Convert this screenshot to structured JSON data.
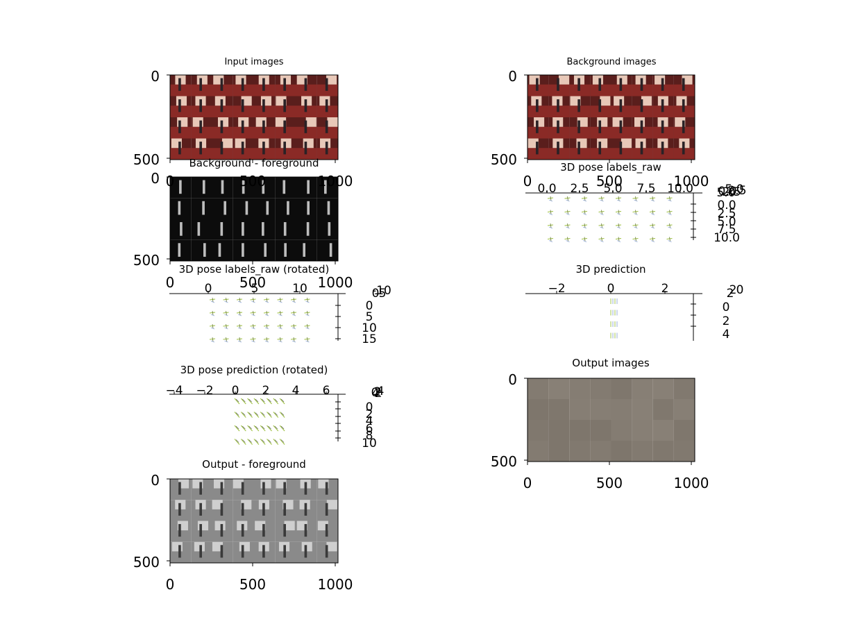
{
  "figure": {
    "colors": {
      "background": "#ffffff",
      "axis": "#000000",
      "input_tint": "#8a2a26",
      "background_tint": "#9a3a30",
      "foreground_dark": "#0c0c0c",
      "output_tint": "#7e7268",
      "pose_green": "#9bbf3c",
      "pose_blue": "#8fa6d6"
    }
  },
  "chart_data": [
    {
      "id": "input_images",
      "type": "image",
      "title": "Input images",
      "xticks": [],
      "xticks_top": [
        "0",
        "500",
        "1000"
      ],
      "yticks": [
        "0",
        "500"
      ],
      "tint": "color",
      "grid": [
        8,
        4
      ]
    },
    {
      "id": "background_images",
      "type": "image",
      "title": "Background images",
      "xticks_top": [
        "0",
        "500",
        "1000"
      ],
      "yticks": [
        "0",
        "500"
      ],
      "tint": "color",
      "grid": [
        8,
        4
      ]
    },
    {
      "id": "background_foreground",
      "type": "image",
      "title": "Background - foreground",
      "xticks_top": [
        "0",
        "500",
        "1000"
      ],
      "yticks": [
        "0",
        "500"
      ],
      "tint": "dark",
      "grid": [
        8,
        4
      ]
    },
    {
      "id": "pose_labels_raw",
      "type": "scatter",
      "title": "3D pose labels_raw",
      "xticks_top": [
        "0.0",
        "2.5",
        "5.0",
        "7.5",
        "10.0"
      ],
      "yticks_right": [
        "0.0",
        "2.5",
        "5.0",
        "7.5",
        "10.0"
      ],
      "ztick_labels": [
        "5.0",
        "2.5",
        "0.0",
        "2.5",
        "5.0"
      ],
      "grid": [
        8,
        4
      ]
    },
    {
      "id": "pose_labels_raw_rotated",
      "type": "scatter",
      "title": "3D pose labels_raw (rotated)",
      "xticks_top": [
        "0",
        "5",
        "10"
      ],
      "yticks_right": [
        "0",
        "5",
        "10",
        "15"
      ],
      "ztick_labels": [
        "-10",
        "-5",
        "0"
      ],
      "grid": [
        8,
        4
      ]
    },
    {
      "id": "prediction_3d",
      "type": "scatter",
      "title": "3D prediction",
      "xticks_top": [
        "−2",
        "0",
        "2"
      ],
      "yticks_right": [
        "0",
        "2",
        "4"
      ],
      "ztick_labels": [
        "0",
        "2",
        "2"
      ],
      "grid": [
        1,
        4
      ]
    },
    {
      "id": "pose_prediction_rotated",
      "type": "scatter",
      "title": "3D pose prediction (rotated)",
      "xticks_top": [
        "−4",
        "−2",
        "0",
        "2",
        "4",
        "6"
      ],
      "yticks_right": [
        "0",
        "2",
        "4",
        "6",
        "8",
        "10"
      ],
      "ztick_labels": [
        "4",
        "2",
        "0",
        "2",
        "4"
      ],
      "grid": [
        8,
        4
      ]
    },
    {
      "id": "output_images",
      "type": "image",
      "title": "Output images",
      "xticks": [
        "0",
        "500",
        "1000"
      ],
      "yticks": [
        "0",
        "500"
      ],
      "tint": "flat",
      "grid": [
        8,
        4
      ]
    },
    {
      "id": "output_foreground",
      "type": "image",
      "title": "Output - foreground",
      "xticks": [
        "0",
        "500",
        "1000"
      ],
      "yticks": [
        "0",
        "500"
      ],
      "tint": "gray",
      "grid": [
        8,
        4
      ]
    }
  ]
}
